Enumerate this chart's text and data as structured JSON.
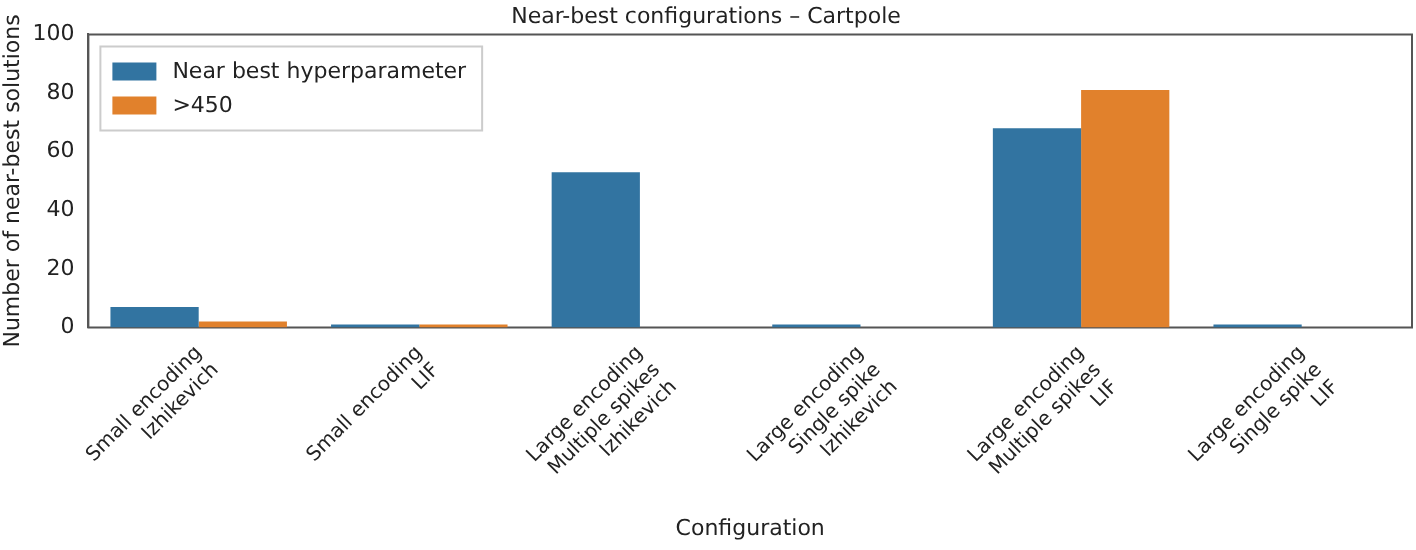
{
  "chart_data": {
    "type": "bar",
    "title": "Near-best configurations – Cartpole",
    "xlabel": "Configuration",
    "ylabel": "Number of near-best solutions",
    "categories": [
      "Small encoding\nIzhikevich",
      "Small encoding\nLIF",
      "Large encoding\nMultiple spikes\nIzhikevich",
      "Large encoding\nSingle spike\nIzhikevich",
      "Large encoding\nMultiple spikes\nLIF",
      "Large encoding\nSingle spike\nLIF"
    ],
    "series": [
      {
        "name": "Near best hyperparameter",
        "color": "#3274a1",
        "values": [
          7,
          1,
          53,
          1,
          68,
          1
        ]
      },
      {
        "name": ">450",
        "color": "#e1812c",
        "values": [
          2,
          1,
          0,
          0,
          81,
          0
        ]
      }
    ],
    "ylim": [
      0,
      100
    ],
    "yticks": [
      0,
      20,
      40,
      60,
      80,
      100
    ],
    "grid": false,
    "legend": "top left"
  }
}
